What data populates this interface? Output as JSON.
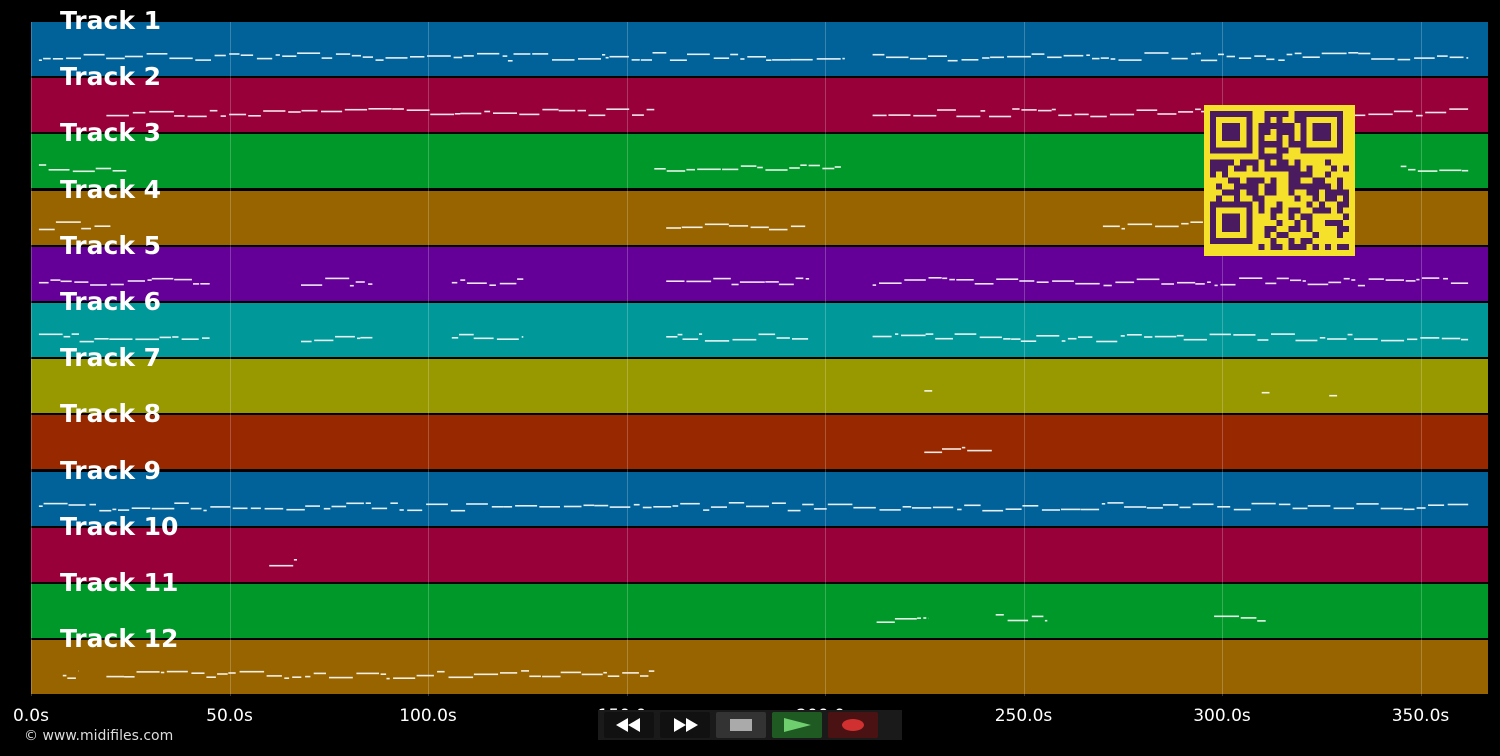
{
  "tracks": [
    {
      "label": "Track 1",
      "color": "#006298"
    },
    {
      "label": "Track 2",
      "color": "#98003a"
    },
    {
      "label": "Track 3",
      "color": "#009828"
    },
    {
      "label": "Track 4",
      "color": "#986400"
    },
    {
      "label": "Track 5",
      "color": "#640098"
    },
    {
      "label": "Track 6",
      "color": "#009898"
    },
    {
      "label": "Track 7",
      "color": "#989800"
    },
    {
      "label": "Track 8",
      "color": "#982800"
    },
    {
      "label": "Track 9",
      "color": "#006298"
    },
    {
      "label": "Track 10",
      "color": "#98003a"
    },
    {
      "label": "Track 11",
      "color": "#009828"
    },
    {
      "label": "Track 12",
      "color": "#986400"
    }
  ],
  "time_axis": {
    "unit": "s",
    "max": 367,
    "ticks": [
      "0.0s",
      "50.0s",
      "100.0s",
      "150.0s",
      "200.0s",
      "250.0s",
      "300.0s",
      "350.0s"
    ]
  },
  "copyright": "© www.midifiles.com",
  "transport": {
    "rewind_icon": "rewind-icon",
    "forward_icon": "fast-forward-icon",
    "stop_icon": "stop-icon",
    "play_icon": "play-icon",
    "record_icon": "record-icon"
  },
  "qr_icon": "qr-code-icon"
}
